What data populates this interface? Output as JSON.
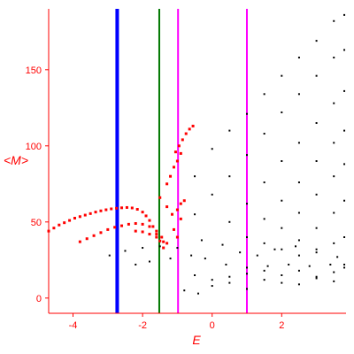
{
  "chart_data": {
    "type": "scatter",
    "title": "",
    "xlabel": "E",
    "ylabel": "<M>",
    "xlim": [
      -4.7,
      3.85
    ],
    "ylim": [
      -10,
      190
    ],
    "grid": false,
    "x_ticks": [
      -4,
      -2,
      0,
      2
    ],
    "x_tick_labels": [
      "-4",
      "-2",
      "0",
      "2"
    ],
    "y_ticks": [
      0,
      50,
      100,
      150
    ],
    "y_tick_labels": [
      "0",
      "50",
      "100",
      "150"
    ],
    "colors": {
      "axis": "#ff0000",
      "highlighted_points": "#ff0000",
      "points": "#000000",
      "line_blue": "#0000ff",
      "line_green": "#007700",
      "line_magenta": "#ff00ff"
    },
    "vertical_lines": [
      {
        "x": -2.73,
        "color": "#0000ff"
      },
      {
        "x": -1.52,
        "color": "#007700"
      },
      {
        "x": -0.98,
        "color": "#ff00ff"
      },
      {
        "x": 1.0,
        "color": "#ff00ff"
      }
    ],
    "series": [
      {
        "color": "#ff0000",
        "points": [
          [
            -4.7,
            44
          ],
          [
            -4.55,
            46
          ],
          [
            -4.4,
            48
          ],
          [
            -4.25,
            49.5
          ],
          [
            -4.1,
            51
          ],
          [
            -3.95,
            52.5
          ],
          [
            -3.8,
            53.5
          ],
          [
            -3.65,
            54.5
          ],
          [
            -3.5,
            55.5
          ],
          [
            -3.35,
            56.5
          ],
          [
            -3.2,
            57.3
          ],
          [
            -3.05,
            58
          ],
          [
            -2.9,
            58.6
          ],
          [
            -2.75,
            59
          ],
          [
            -2.6,
            59.3
          ],
          [
            -2.45,
            59.5
          ],
          [
            -2.3,
            59.2
          ],
          [
            -2.15,
            58.3
          ],
          [
            -2.0,
            56.5
          ],
          [
            -1.9,
            54
          ],
          [
            -1.8,
            51
          ],
          [
            -1.7,
            47
          ],
          [
            -1.6,
            42
          ],
          [
            -1.5,
            37.5
          ],
          [
            -1.4,
            33
          ],
          [
            -3.8,
            37
          ],
          [
            -3.6,
            39
          ],
          [
            -3.4,
            41
          ],
          [
            -3.2,
            43
          ],
          [
            -3.0,
            45
          ],
          [
            -2.8,
            46.5
          ],
          [
            -2.6,
            47.5
          ],
          [
            -2.4,
            48.5
          ],
          [
            -2.2,
            49
          ],
          [
            -2.0,
            48.5
          ],
          [
            -1.8,
            47
          ],
          [
            -1.6,
            44
          ],
          [
            -1.45,
            40
          ],
          [
            -1.3,
            36
          ],
          [
            -2.2,
            44
          ],
          [
            -2.0,
            43.5
          ],
          [
            -1.8,
            42
          ],
          [
            -1.6,
            40
          ],
          [
            -1.4,
            37
          ],
          [
            -1.3,
            75
          ],
          [
            -1.2,
            80
          ],
          [
            -1.1,
            86
          ],
          [
            -1.0,
            90
          ],
          [
            -0.9,
            95
          ],
          [
            -1.05,
            96
          ],
          [
            -0.95,
            100
          ],
          [
            -0.85,
            104
          ],
          [
            -0.75,
            108
          ],
          [
            -0.65,
            111
          ],
          [
            -0.55,
            113
          ],
          [
            -1.5,
            66
          ],
          [
            -1.3,
            60
          ],
          [
            -1.15,
            55
          ],
          [
            -1.0,
            58
          ],
          [
            -0.9,
            62
          ],
          [
            -0.8,
            64
          ],
          [
            -1.0,
            40
          ],
          [
            -1.1,
            45
          ],
          [
            -0.9,
            52
          ]
        ]
      },
      {
        "color": "#000000",
        "points": [
          [
            -0.5,
            80
          ],
          [
            0,
            98
          ],
          [
            0.5,
            110
          ],
          [
            1,
            121
          ],
          [
            1.5,
            134
          ],
          [
            2,
            146
          ],
          [
            2.5,
            158
          ],
          [
            3,
            169
          ],
          [
            3.5,
            182
          ],
          [
            3.8,
            186
          ],
          [
            -0.5,
            55
          ],
          [
            0,
            68
          ],
          [
            0.5,
            80
          ],
          [
            1,
            94
          ],
          [
            1.5,
            108
          ],
          [
            2,
            122
          ],
          [
            2.5,
            134
          ],
          [
            3,
            146
          ],
          [
            3.5,
            158
          ],
          [
            3.8,
            163
          ],
          [
            0.5,
            50
          ],
          [
            1,
            62
          ],
          [
            1.5,
            76
          ],
          [
            2,
            90
          ],
          [
            2.5,
            102
          ],
          [
            3,
            115
          ],
          [
            3.5,
            128
          ],
          [
            3.8,
            136
          ],
          [
            1,
            40
          ],
          [
            1.5,
            52
          ],
          [
            2,
            64
          ],
          [
            2.5,
            76
          ],
          [
            3,
            90
          ],
          [
            3.5,
            102
          ],
          [
            3.8,
            110
          ],
          [
            1.5,
            36
          ],
          [
            2,
            46
          ],
          [
            2.5,
            56
          ],
          [
            3,
            68
          ],
          [
            3.5,
            80
          ],
          [
            3.8,
            88
          ],
          [
            2,
            32
          ],
          [
            2.5,
            38
          ],
          [
            3,
            46
          ],
          [
            3.5,
            56
          ],
          [
            3.8,
            64
          ],
          [
            2.5,
            28
          ],
          [
            3,
            32
          ],
          [
            3.5,
            36
          ],
          [
            3.8,
            40
          ],
          [
            -2.95,
            28
          ],
          [
            -2.5,
            31
          ],
          [
            -2.0,
            33
          ],
          [
            -1.5,
            34
          ],
          [
            -1.0,
            33
          ],
          [
            -2.2,
            22
          ],
          [
            -1.8,
            24
          ],
          [
            -1.2,
            26
          ],
          [
            -0.6,
            28
          ],
          [
            -0.2,
            26
          ],
          [
            0.4,
            22
          ],
          [
            1,
            20
          ],
          [
            1.6,
            21
          ],
          [
            2.2,
            22
          ],
          [
            2.8,
            21
          ],
          [
            3.4,
            22
          ],
          [
            3.8,
            20
          ],
          [
            -0.5,
            15
          ],
          [
            0,
            12
          ],
          [
            0.5,
            14
          ],
          [
            1,
            16
          ],
          [
            1.5,
            18
          ],
          [
            2,
            15
          ],
          [
            2.5,
            18
          ],
          [
            3,
            13
          ],
          [
            3.5,
            17
          ],
          [
            3.8,
            22
          ],
          [
            -0.8,
            5
          ],
          [
            -0.4,
            3
          ],
          [
            0,
            8
          ],
          [
            0.5,
            10
          ],
          [
            1,
            6
          ],
          [
            1.5,
            12
          ],
          [
            2,
            10
          ],
          [
            2.5,
            9
          ],
          [
            3,
            14
          ],
          [
            3.5,
            11
          ],
          [
            -0.3,
            38
          ],
          [
            0.3,
            35
          ],
          [
            0.8,
            30
          ],
          [
            1.3,
            28
          ],
          [
            1.8,
            32
          ],
          [
            2.4,
            34
          ],
          [
            3.0,
            30
          ],
          [
            3.6,
            27
          ]
        ]
      }
    ]
  }
}
